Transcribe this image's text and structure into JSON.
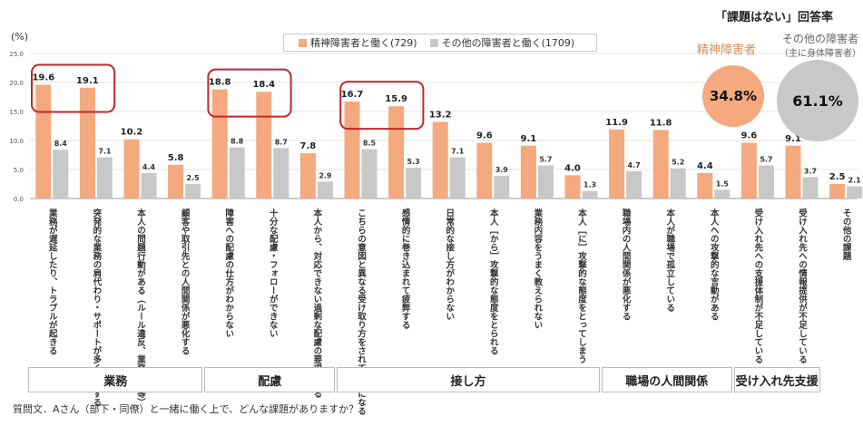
{
  "chart_data": {
    "type": "bar",
    "unit_label": "(%)",
    "ylim": [
      0,
      25
    ],
    "yticks": [
      "25.0",
      "20.0",
      "15.0",
      "10.0",
      "5.0",
      "0.0"
    ],
    "series": [
      {
        "name": "精神障害者と働く(729)",
        "color": "#f4a97e"
      },
      {
        "name": "その他の障害者と働く(1709)",
        "color": "#c8c8c8"
      }
    ],
    "categories": [
      {
        "label": "業務が遅延したり、トラブルが起きる",
        "a": 19.6,
        "b": 8.4,
        "a_text": "19.6",
        "b_text": "8.4",
        "highlight": true
      },
      {
        "label": "突発的な業務の肩代わり・サポートが多く疲弊する",
        "a": 19.1,
        "b": 7.1,
        "a_text": "19.1",
        "b_text": "7.1",
        "highlight": true
      },
      {
        "label": "本人の問題行動がある（ルール違反、業務妨害等）",
        "a": 10.2,
        "b": 4.4,
        "a_text": "10.2",
        "b_text": "4.4",
        "highlight": false
      },
      {
        "label": "顧客や取引先との人間関係が悪化する",
        "a": 5.8,
        "b": 2.5,
        "a_text": "5.8",
        "b_text": "2.5",
        "highlight": false
      },
      {
        "label": "障害への配慮の仕方がわからない",
        "a": 18.8,
        "b": 8.8,
        "a_text": "18.8",
        "b_text": "8.8",
        "highlight": true
      },
      {
        "label": "十分な配慮・フォローができない",
        "a": 18.4,
        "b": 8.7,
        "a_text": "18.4",
        "b_text": "8.7",
        "highlight": true
      },
      {
        "label": "本人から、対応できない過剰な配慮の要求がある",
        "a": 7.8,
        "b": 2.9,
        "a_text": "7.8",
        "b_text": "2.9",
        "highlight": false
      },
      {
        "label": "こちらの意図と異なる受け取り方をされて問題になる",
        "a": 16.7,
        "b": 8.5,
        "a_text": "16.7",
        "b_text": "8.5",
        "highlight": true
      },
      {
        "label": "感情的に巻き込まれて疲弊する",
        "a": 15.9,
        "b": 5.3,
        "a_text": "15.9",
        "b_text": "5.3",
        "highlight": true
      },
      {
        "label": "日常的な接し方がわからない",
        "a": 13.2,
        "b": 7.1,
        "a_text": "13.2",
        "b_text": "7.1",
        "highlight": false
      },
      {
        "label": "本人［から］攻撃的な態度をとられる",
        "a": 9.6,
        "b": 3.9,
        "a_text": "9.6",
        "b_text": "3.9",
        "highlight": false
      },
      {
        "label": "業務内容をうまく教えられない",
        "a": 9.1,
        "b": 5.7,
        "a_text": "9.1",
        "b_text": "5.7",
        "highlight": false
      },
      {
        "label": "本人［に］攻撃的な態度をとってしまう",
        "a": 4.0,
        "b": 1.3,
        "a_text": "4.0",
        "b_text": "1.3",
        "highlight": false
      },
      {
        "label": "職場内の人間関係が悪化する",
        "a": 11.9,
        "b": 4.7,
        "a_text": "11.9",
        "b_text": "4.7",
        "highlight": false
      },
      {
        "label": "本人が職場で孤立している",
        "a": 11.8,
        "b": 5.2,
        "a_text": "11.8",
        "b_text": "5.2",
        "highlight": false
      },
      {
        "label": "本人への攻撃的な言動がある",
        "a": 4.4,
        "b": 1.5,
        "a_text": "4.4",
        "b_text": "1.5",
        "highlight": false
      },
      {
        "label": "受け入れ先への支援体制が不足している",
        "a": 9.6,
        "b": 5.7,
        "a_text": "9.6",
        "b_text": "5.7",
        "highlight": false
      },
      {
        "label": "受け入れ先への情報提供が不足している",
        "a": 9.1,
        "b": 3.7,
        "a_text": "9.1",
        "b_text": "3.7",
        "highlight": false
      },
      {
        "label": "その他の課題",
        "a": 2.5,
        "b": 2.1,
        "a_text": "2.5",
        "b_text": "2.1",
        "highlight": false
      }
    ],
    "groups": [
      {
        "label": "業務",
        "start": 0,
        "end": 3
      },
      {
        "label": "配慮",
        "start": 4,
        "end": 6
      },
      {
        "label": "接し方",
        "start": 7,
        "end": 12
      },
      {
        "label": "職場の人間関係",
        "start": 13,
        "end": 15
      },
      {
        "label": "受け入れ先支援",
        "start": 16,
        "end": 17
      }
    ],
    "highlight_boxes": [
      [
        0,
        1
      ],
      [
        4,
        5
      ],
      [
        7,
        8
      ]
    ]
  },
  "legend": {
    "a_label": "精神障害者と働く(729)",
    "b_label": "その他の障害者と働く(1709)"
  },
  "rate_panel": {
    "title": "「課題はない」回答率",
    "a_label": "精神障害者",
    "b_label": "その他の障害者",
    "b_sub": "（主に身体障害者）",
    "a_value": "34.8%",
    "b_value": "61.1%"
  },
  "question": "質問文．Aさん（部下・同僚）と一緒に働く上で、どんな課題がありますか？"
}
